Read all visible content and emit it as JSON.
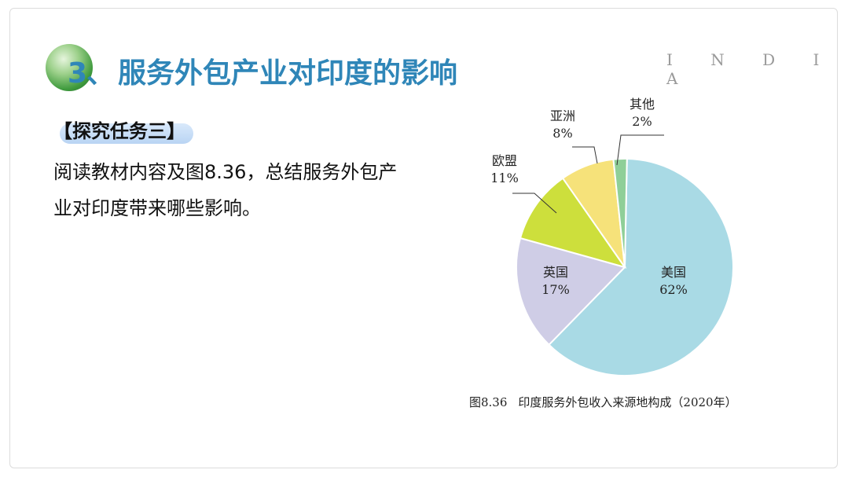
{
  "title": {
    "number": "3、",
    "text": "服务外包产业对印度的影响",
    "decoration": "I N D I A"
  },
  "task": {
    "tag": "【探究任务三】",
    "lines": [
      "阅读教材内容及图8.36，总结服务外包产",
      "业对印度带来哪些影响。"
    ]
  },
  "chart_data": {
    "type": "pie",
    "caption_figure": "图8.36",
    "caption_title": "印度服务外包收入来源地构成（2020年）",
    "slices": [
      {
        "name": "美国",
        "value": 62,
        "label": "62%",
        "color": "#a9dae5"
      },
      {
        "name": "英国",
        "value": 17,
        "label": "17%",
        "color": "#cfcde6"
      },
      {
        "name": "欧盟",
        "value": 11,
        "label": "11%",
        "color": "#cddf3c"
      },
      {
        "name": "亚洲",
        "value": 8,
        "label": "8%",
        "color": "#f6e27a"
      },
      {
        "name": "其他",
        "value": 2,
        "label": "2%",
        "color": "#8fcf98"
      }
    ]
  }
}
